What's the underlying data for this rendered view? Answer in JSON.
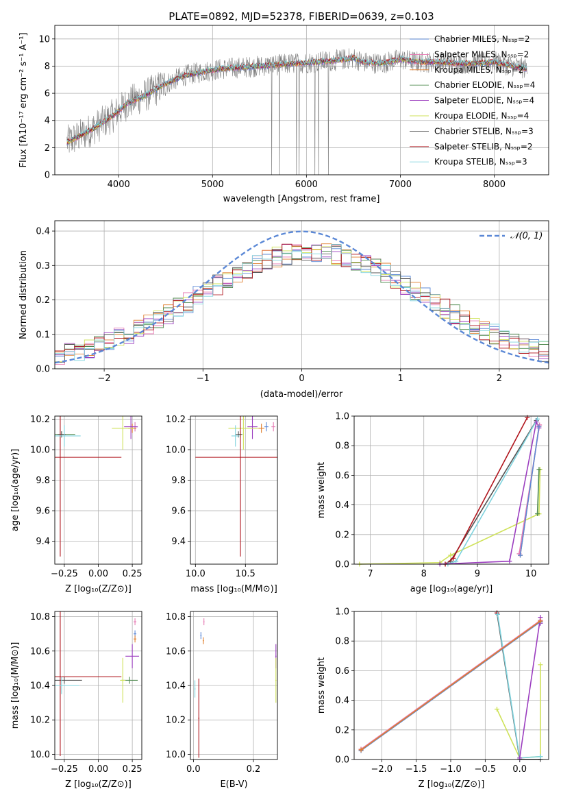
{
  "colors": {
    "chabrier_miles": "#5b88d6",
    "salpeter_miles": "#e67ab3",
    "kroupa_miles": "#e07e2c",
    "chabrier_elodie": "#4f8a4f",
    "salpeter_elodie": "#9b3dbf",
    "kroupa_elodie": "#cfe25a",
    "chabrier_stelib": "#555555",
    "salpeter_stelib": "#b0141c",
    "kroupa_stelib": "#7fd3de",
    "data": "#7f7f7f",
    "normal": "#5b88d6"
  },
  "chart_data": [
    {
      "id": "spectrum",
      "type": "line",
      "title": "PLATE=0892, MJD=52378, FIBERID=0639, z=0.103",
      "xlabel": "wavelength [Angstrom, rest frame]",
      "ylabel": "Flux [fλ10⁻¹⁷ erg cm⁻² s⁻¹ A⁻¹]",
      "xlim": [
        3320,
        8580
      ],
      "ylim": [
        0,
        11
      ],
      "xticks": [
        4000,
        5000,
        6000,
        7000,
        8000
      ],
      "yticks": [
        0,
        2,
        4,
        6,
        8,
        10
      ],
      "legend_position": "top-right",
      "legend": [
        "Chabrier MILES, Nₛₛₚ=2",
        "Salpeter MILES, Nₛₛₚ=2",
        "Kroupa MILES, Nₛₛₚ=2",
        "Chabrier ELODIE, Nₛₛₚ=4",
        "Salpeter ELODIE, Nₛₛₚ=4",
        "Kroupa ELODIE, Nₛₛₚ=4",
        "Chabrier STELIB, Nₛₛₚ=3",
        "Salpeter STELIB, Nₛₛₚ=2",
        "Kroupa STELIB, Nₛₛₚ=3"
      ],
      "continuum": {
        "x": [
          3450,
          3600,
          3800,
          3950,
          4100,
          4300,
          4500,
          4700,
          4900,
          5100,
          5300,
          5500,
          5700,
          5900,
          6100,
          6300,
          6500,
          6600,
          6800,
          7000,
          7200,
          7400,
          7600,
          7800,
          8000,
          8200,
          8350
        ],
        "y": [
          2.4,
          2.9,
          3.7,
          4.4,
          5.3,
          5.9,
          6.7,
          7.3,
          7.6,
          7.8,
          7.9,
          8.0,
          8.1,
          8.2,
          8.3,
          8.4,
          8.6,
          8.3,
          8.2,
          8.5,
          8.3,
          8.3,
          8.2,
          8.2,
          8.3,
          8.0,
          7.8
        ]
      }
    },
    {
      "id": "residuals",
      "type": "histogram",
      "xlabel": "(data-model)/error",
      "ylabel": "Normed distribution",
      "xlim": [
        -2.5,
        2.5
      ],
      "ylim": [
        0,
        0.43
      ],
      "xticks": [
        -2,
        -1,
        0,
        1,
        2
      ],
      "yticks": [
        0.0,
        0.1,
        0.2,
        0.3,
        0.4
      ],
      "reference_curve": {
        "label": "𝒩(0, 1)",
        "mean": 0,
        "sigma": 1
      },
      "bin_width": 0.1,
      "legend_position": "top-right"
    },
    {
      "id": "age_vs_Z",
      "type": "errorbar",
      "xlabel": "Z [log₁₀(Z/Z⊙)]",
      "ylabel": "age  [log₁₀(age/yr)]",
      "xlim": [
        -0.32,
        0.32
      ],
      "ylim": [
        9.25,
        10.22
      ],
      "xticks": [
        -0.25,
        0.0,
        0.25
      ],
      "xticklabels": [
        "−0.25",
        "0.00",
        "0.25"
      ],
      "yticks": [
        9.4,
        9.6,
        9.8,
        10.0,
        10.2
      ],
      "points": [
        {
          "m": "chabrier_miles",
          "x": 0.27,
          "y": 10.15,
          "xerr": 0.02,
          "yerr": 0.03
        },
        {
          "m": "salpeter_miles",
          "x": 0.27,
          "y": 10.15,
          "xerr": 0.02,
          "yerr": 0.03
        },
        {
          "m": "kroupa_miles",
          "x": 0.25,
          "y": 10.14,
          "xerr": 0.03,
          "yerr": 0.03
        },
        {
          "m": "chabrier_elodie",
          "x": -0.27,
          "y": 10.1,
          "xerr": 0.1,
          "yerr": 0.02
        },
        {
          "m": "salpeter_elodie",
          "x": 0.24,
          "y": 10.15,
          "xerr": 0.05,
          "yerr": 0.08
        },
        {
          "m": "kroupa_elodie",
          "x": 0.18,
          "y": 10.14,
          "xerr": 0.08,
          "yerr": 0.14
        },
        {
          "m": "chabrier_stelib",
          "x": -0.27,
          "y": 10.1,
          "xerr": 0.03,
          "yerr": 0.02
        },
        {
          "m": "salpeter_stelib",
          "x": -0.28,
          "y": 9.95,
          "xerr": 0.45,
          "yerr": 0.65
        },
        {
          "m": "kroupa_stelib",
          "x": -0.25,
          "y": 10.09,
          "xerr": 0.12,
          "yerr": 0.07
        }
      ]
    },
    {
      "id": "age_vs_mass",
      "type": "errorbar",
      "xlabel": "mass [log₁₀(M/M⊙)]",
      "ylabel": "",
      "xlim": [
        9.95,
        10.82
      ],
      "ylim": [
        9.25,
        10.22
      ],
      "xticks": [
        10.0,
        10.5
      ],
      "xticklabels": [
        "10.0",
        "10.5"
      ],
      "yticks": [
        9.4,
        9.6,
        9.8,
        10.0,
        10.2
      ],
      "points": [
        {
          "m": "chabrier_miles",
          "x": 10.71,
          "y": 10.15,
          "xerr": 0.02,
          "yerr": 0.03
        },
        {
          "m": "salpeter_miles",
          "x": 10.78,
          "y": 10.15,
          "xerr": 0.02,
          "yerr": 0.03
        },
        {
          "m": "kroupa_miles",
          "x": 10.66,
          "y": 10.14,
          "xerr": 0.03,
          "yerr": 0.03
        },
        {
          "m": "chabrier_elodie",
          "x": 10.45,
          "y": 10.1,
          "xerr": 0.02,
          "yerr": 0.02
        },
        {
          "m": "salpeter_elodie",
          "x": 10.57,
          "y": 10.15,
          "xerr": 0.05,
          "yerr": 0.08
        },
        {
          "m": "kroupa_elodie",
          "x": 10.48,
          "y": 10.14,
          "xerr": 0.15,
          "yerr": 0.14
        },
        {
          "m": "chabrier_stelib",
          "x": 10.43,
          "y": 10.1,
          "xerr": 0.03,
          "yerr": 0.02
        },
        {
          "m": "salpeter_stelib",
          "x": 10.45,
          "y": 9.95,
          "xerr": 0.45,
          "yerr": 0.65
        },
        {
          "m": "kroupa_stelib",
          "x": 10.4,
          "y": 10.09,
          "xerr": 0.04,
          "yerr": 0.07
        }
      ]
    },
    {
      "id": "weight_vs_age",
      "type": "line",
      "xlabel": "age  [log₁₀(age/yr)]",
      "ylabel": "mass weight",
      "xlim": [
        6.7,
        10.33
      ],
      "ylim": [
        0,
        1
      ],
      "xticks": [
        7,
        8,
        9,
        10
      ],
      "yticks": [
        0.0,
        0.2,
        0.4,
        0.6,
        0.8,
        1.0
      ],
      "series": [
        {
          "m": "kroupa_elodie",
          "x": [
            6.8,
            8.3,
            8.5,
            10.15,
            10.17,
            10.15
          ],
          "y": [
            0.0,
            0.01,
            0.06,
            0.34,
            0.64,
            0.34
          ]
        },
        {
          "m": "chabrier_stelib",
          "x": [
            8.4,
            8.5,
            10.1
          ],
          "y": [
            0.0,
            0.02,
            0.97
          ]
        },
        {
          "m": "salpeter_stelib",
          "x": [
            8.4,
            8.55,
            9.93
          ],
          "y": [
            0.0,
            0.04,
            0.99
          ]
        },
        {
          "m": "kroupa_stelib",
          "x": [
            8.45,
            8.6,
            10.12
          ],
          "y": [
            0.0,
            0.02,
            0.98
          ]
        },
        {
          "m": "salpeter_elodie",
          "x": [
            8.3,
            9.6,
            10.1,
            10.15
          ],
          "y": [
            0.0,
            0.02,
            0.96,
            0.92
          ]
        },
        {
          "m": "kroupa_miles",
          "x": [
            9.8,
            10.15
          ],
          "y": [
            0.06,
            0.93
          ]
        },
        {
          "m": "salpeter_miles",
          "x": [
            9.78,
            10.16
          ],
          "y": [
            0.07,
            0.94
          ]
        },
        {
          "m": "chabrier_miles",
          "x": [
            9.8,
            10.15
          ],
          "y": [
            0.06,
            0.93
          ]
        },
        {
          "m": "chabrier_elodie",
          "x": [
            10.12,
            10.15
          ],
          "y": [
            0.34,
            0.64
          ]
        }
      ]
    },
    {
      "id": "mass_vs_Z",
      "type": "errorbar",
      "xlabel": "Z [log₁₀(Z/Z⊙)]",
      "ylabel": "mass [log₁₀(M/M⊙)]",
      "xlim": [
        -0.32,
        0.32
      ],
      "ylim": [
        9.97,
        10.83
      ],
      "xticks": [
        -0.25,
        0.0,
        0.25
      ],
      "xticklabels": [
        "−0.25",
        "0.00",
        "0.25"
      ],
      "yticks": [
        10.0,
        10.2,
        10.4,
        10.6,
        10.8
      ],
      "points": [
        {
          "m": "chabrier_miles",
          "x": 0.27,
          "y": 10.7,
          "xerr": 0.01,
          "yerr": 0.02
        },
        {
          "m": "salpeter_miles",
          "x": 0.27,
          "y": 10.77,
          "xerr": 0.01,
          "yerr": 0.02
        },
        {
          "m": "kroupa_miles",
          "x": 0.27,
          "y": 10.67,
          "xerr": 0.01,
          "yerr": 0.02
        },
        {
          "m": "chabrier_elodie",
          "x": 0.23,
          "y": 10.43,
          "xerr": 0.06,
          "yerr": 0.02
        },
        {
          "m": "salpeter_elodie",
          "x": 0.25,
          "y": 10.57,
          "xerr": 0.05,
          "yerr": 0.07
        },
        {
          "m": "kroupa_elodie",
          "x": 0.18,
          "y": 10.43,
          "xerr": 0.02,
          "yerr": 0.13
        },
        {
          "m": "chabrier_stelib",
          "x": -0.25,
          "y": 10.43,
          "xerr": 0.13,
          "yerr": 0.02
        },
        {
          "m": "salpeter_stelib",
          "x": -0.28,
          "y": 10.45,
          "xerr": 0.45,
          "yerr": 0.46
        },
        {
          "m": "kroupa_stelib",
          "x": -0.27,
          "y": 10.4,
          "xerr": 0.13,
          "yerr": 0.05
        }
      ]
    },
    {
      "id": "mass_vs_ebv",
      "type": "errorbar",
      "xlabel": "E(B-V)",
      "ylabel": "",
      "xlim": [
        -0.01,
        0.28
      ],
      "ylim": [
        9.97,
        10.83
      ],
      "xticks": [
        0.0,
        0.2
      ],
      "xticklabels": [
        "0.0",
        "0.2"
      ],
      "yticks": [
        10.0,
        10.2,
        10.4,
        10.6,
        10.8
      ],
      "points": [
        {
          "m": "chabrier_miles",
          "x": 0.025,
          "y": 10.69,
          "xerr": 0.002,
          "yerr": 0.02
        },
        {
          "m": "salpeter_miles",
          "x": 0.035,
          "y": 10.77,
          "xerr": 0.002,
          "yerr": 0.02
        },
        {
          "m": "kroupa_miles",
          "x": 0.033,
          "y": 10.66,
          "xerr": 0.002,
          "yerr": 0.02
        },
        {
          "m": "salpeter_elodie",
          "x": 0.275,
          "y": 10.57,
          "xerr": 0.002,
          "yerr": 0.07
        },
        {
          "m": "kroupa_elodie",
          "x": 0.275,
          "y": 10.43,
          "xerr": 0.002,
          "yerr": 0.13
        },
        {
          "m": "salpeter_stelib",
          "x": 0.018,
          "y": 10.21,
          "xerr": 0.002,
          "yerr": 0.23
        },
        {
          "m": "kroupa_stelib",
          "x": 0.005,
          "y": 10.38,
          "xerr": 0.002,
          "yerr": 0.05
        }
      ]
    },
    {
      "id": "weight_vs_Z",
      "type": "line",
      "xlabel": "Z [log₁₀(Z/Z⊙)]",
      "ylabel": "mass weight",
      "xlim": [
        -2.4,
        0.42
      ],
      "ylim": [
        0,
        1
      ],
      "xticks": [
        -2.0,
        -1.5,
        -1.0,
        -0.5,
        0.0
      ],
      "xticklabels": [
        "−2.0",
        "−1.5",
        "−1.0",
        "−0.5",
        "0.0"
      ],
      "yticks": [
        0.0,
        0.2,
        0.4,
        0.6,
        0.8,
        1.0
      ],
      "series": [
        {
          "m": "kroupa_elodie",
          "x": [
            -0.33,
            0.0,
            0.3,
            0.3
          ],
          "y": [
            0.34,
            0.01,
            0.02,
            0.64
          ]
        },
        {
          "m": "chabrier_stelib",
          "x": [
            -0.33,
            0.0,
            0.3
          ],
          "y": [
            0.99,
            0.0,
            0.0
          ]
        },
        {
          "m": "salpeter_stelib",
          "x": [
            -0.33,
            -0.32
          ],
          "y": [
            0.99,
            0.98
          ]
        },
        {
          "m": "kroupa_stelib",
          "x": [
            -0.32,
            0.0,
            0.3
          ],
          "y": [
            0.98,
            0.01,
            0.02
          ]
        },
        {
          "m": "salpeter_elodie",
          "x": [
            0.0,
            0.3,
            0.3
          ],
          "y": [
            0.01,
            0.96,
            0.92
          ]
        },
        {
          "m": "chabrier_miles",
          "x": [
            -2.3,
            0.3
          ],
          "y": [
            0.06,
            0.93
          ]
        },
        {
          "m": "salpeter_miles",
          "x": [
            -2.3,
            0.3
          ],
          "y": [
            0.07,
            0.94
          ]
        },
        {
          "m": "kroupa_miles",
          "x": [
            -2.3,
            0.3
          ],
          "y": [
            0.065,
            0.935
          ]
        }
      ]
    }
  ]
}
